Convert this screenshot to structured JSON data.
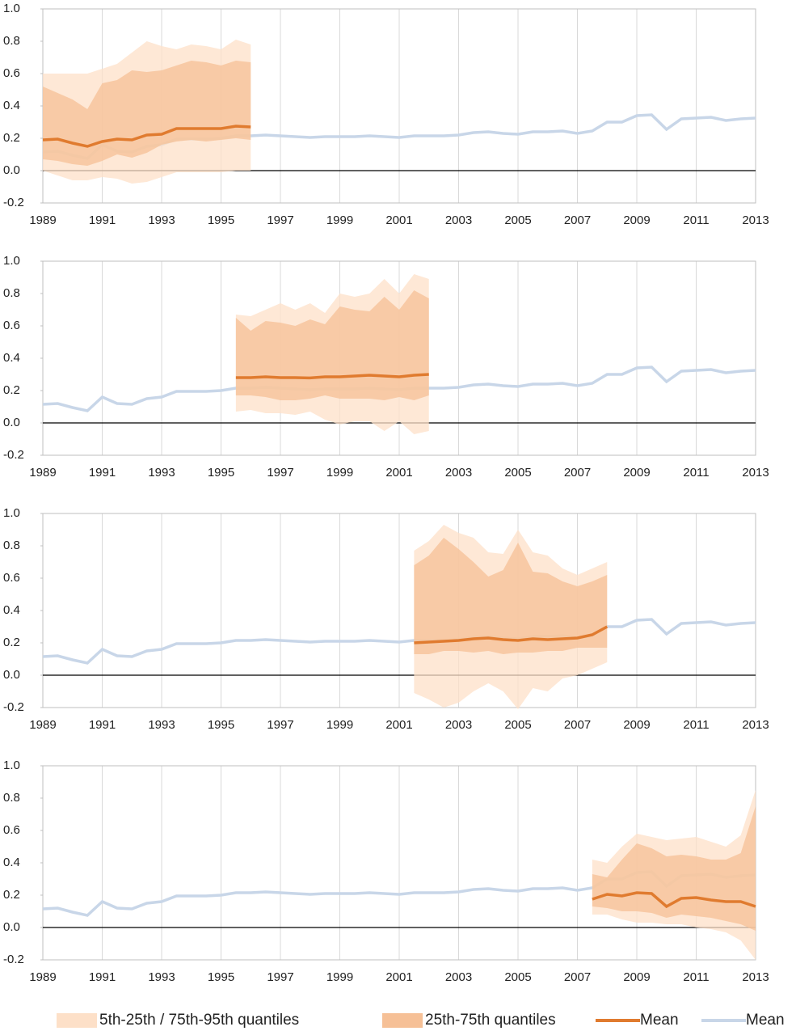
{
  "chart_data": [
    {
      "type": "line",
      "xlim": [
        1989,
        2013
      ],
      "xticks": [
        1989,
        1991,
        1993,
        1995,
        1997,
        1999,
        2001,
        2003,
        2005,
        2007,
        2009,
        2011,
        2013
      ],
      "ylim": [
        -0.2,
        1
      ],
      "yticks": [
        -0.2,
        {
          "value": 0,
          "label": "0.0"
        },
        0.2,
        0.4,
        0.6,
        0.8,
        {
          "value": 1,
          "label": "1.0"
        }
      ],
      "x": [
        1989,
        1989.5,
        1990,
        1990.5,
        1991,
        1991.5,
        1992,
        1992.5,
        1993,
        1993.5,
        1994,
        1994.5,
        1995,
        1995.5,
        1996
      ],
      "mean": [
        0.19,
        0.195,
        0.17,
        0.15,
        0.18,
        0.195,
        0.19,
        0.22,
        0.225,
        0.26,
        0.26,
        0.26,
        0.26,
        0.275,
        0.27
      ],
      "p95": [
        0.6,
        0.6,
        0.6,
        0.6,
        0.63,
        0.66,
        0.73,
        0.8,
        0.77,
        0.75,
        0.78,
        0.77,
        0.75,
        0.81,
        0.78
      ],
      "p75": [
        0.52,
        0.48,
        0.44,
        0.38,
        0.54,
        0.56,
        0.62,
        0.61,
        0.62,
        0.65,
        0.68,
        0.67,
        0.65,
        0.68,
        0.67
      ],
      "p25": [
        0.07,
        0.06,
        0.04,
        0.03,
        0.06,
        0.1,
        0.08,
        0.11,
        0.16,
        0.18,
        0.19,
        0.18,
        0.19,
        0.2,
        0.19
      ],
      "p5": [
        0,
        -0.03,
        -0.06,
        -0.06,
        -0.04,
        -0.05,
        -0.08,
        -0.07,
        -0.04,
        -0.01,
        -0.01,
        -0.01,
        -0.01,
        0,
        0
      ]
    },
    {
      "type": "line",
      "xlim": [
        1989,
        2013
      ],
      "xticks": [
        1989,
        1991,
        1993,
        1995,
        1997,
        1999,
        2001,
        2003,
        2005,
        2007,
        2009,
        2011,
        2013
      ],
      "ylim": [
        -0.2,
        1
      ],
      "yticks": [
        -0.2,
        {
          "value": 0,
          "label": "0.0"
        },
        0.2,
        0.4,
        0.6,
        0.8,
        {
          "value": 1,
          "label": "1.0"
        }
      ],
      "x": [
        1995.5,
        1996,
        1996.5,
        1997,
        1997.5,
        1998,
        1998.5,
        1999,
        1999.5,
        2000,
        2000.5,
        2001,
        2001.5,
        2002
      ],
      "mean": [
        0.28,
        0.28,
        0.285,
        0.28,
        0.28,
        0.278,
        0.285,
        0.285,
        0.29,
        0.295,
        0.29,
        0.285,
        0.295,
        0.3
      ],
      "p95": [
        0.67,
        0.66,
        0.7,
        0.74,
        0.7,
        0.74,
        0.68,
        0.8,
        0.78,
        0.8,
        0.89,
        0.8,
        0.92,
        0.89
      ],
      "p75": [
        0.65,
        0.57,
        0.63,
        0.62,
        0.6,
        0.64,
        0.61,
        0.72,
        0.7,
        0.69,
        0.78,
        0.7,
        0.82,
        0.77
      ],
      "p25": [
        0.17,
        0.17,
        0.16,
        0.14,
        0.14,
        0.15,
        0.17,
        0.15,
        0.15,
        0.15,
        0.14,
        0.16,
        0.14,
        0.17
      ],
      "p5": [
        0.07,
        0.08,
        0.06,
        0.06,
        0.05,
        0.07,
        0.02,
        -0.01,
        0.01,
        0.01,
        -0.05,
        0.01,
        -0.07,
        -0.05
      ]
    },
    {
      "type": "line",
      "xlim": [
        1989,
        2013
      ],
      "xticks": [
        1989,
        1991,
        1993,
        1995,
        1997,
        1999,
        2001,
        2003,
        2005,
        2007,
        2009,
        2011,
        2013
      ],
      "ylim": [
        -0.2,
        1
      ],
      "yticks": [
        -0.2,
        {
          "value": 0,
          "label": "0.0"
        },
        0.2,
        0.4,
        0.6,
        0.8,
        {
          "value": 1,
          "label": "1.0"
        }
      ],
      "x": [
        2001.5,
        2002,
        2002.5,
        2003,
        2003.5,
        2004,
        2004.5,
        2005,
        2005.5,
        2006,
        2006.5,
        2007,
        2007.5,
        2008
      ],
      "mean": [
        0.2,
        0.205,
        0.21,
        0.215,
        0.225,
        0.23,
        0.22,
        0.215,
        0.225,
        0.22,
        0.225,
        0.23,
        0.25,
        0.3
      ],
      "p95": [
        0.77,
        0.83,
        0.93,
        0.88,
        0.85,
        0.76,
        0.75,
        0.9,
        0.76,
        0.74,
        0.66,
        0.62,
        0.66,
        0.7
      ],
      "p75": [
        0.68,
        0.74,
        0.85,
        0.78,
        0.7,
        0.61,
        0.65,
        0.82,
        0.64,
        0.63,
        0.58,
        0.55,
        0.58,
        0.62
      ],
      "p25": [
        0.13,
        0.13,
        0.15,
        0.15,
        0.14,
        0.15,
        0.13,
        0.14,
        0.14,
        0.15,
        0.15,
        0.17,
        0.17,
        0.17
      ],
      "p5": [
        -0.11,
        -0.15,
        -0.2,
        -0.17,
        -0.1,
        -0.05,
        -0.1,
        -0.21,
        -0.08,
        -0.1,
        -0.02,
        0,
        0.04,
        0.08
      ]
    },
    {
      "type": "line",
      "xlim": [
        1989,
        2013
      ],
      "xticks": [
        1989,
        1991,
        1993,
        1995,
        1997,
        1999,
        2001,
        2003,
        2005,
        2007,
        2009,
        2011,
        2013
      ],
      "ylim": [
        -0.2,
        1
      ],
      "yticks": [
        -0.2,
        {
          "value": 0,
          "label": "0.0"
        },
        0.2,
        0.4,
        0.6,
        0.8,
        {
          "value": 1,
          "label": "1.0"
        }
      ],
      "x": [
        2007.5,
        2008,
        2008.5,
        2009,
        2009.5,
        2010,
        2010.5,
        2011,
        2011.5,
        2012,
        2012.5,
        2013
      ],
      "mean": [
        0.175,
        0.205,
        0.195,
        0.215,
        0.21,
        0.13,
        0.18,
        0.185,
        0.17,
        0.16,
        0.16,
        0.13
      ],
      "p95": [
        0.42,
        0.4,
        0.5,
        0.58,
        0.56,
        0.54,
        0.55,
        0.56,
        0.53,
        0.5,
        0.57,
        0.85
      ],
      "p75": [
        0.33,
        0.31,
        0.42,
        0.52,
        0.49,
        0.44,
        0.45,
        0.44,
        0.42,
        0.42,
        0.46,
        0.75
      ],
      "p25": [
        0.13,
        0.12,
        0.1,
        0.1,
        0.09,
        0.06,
        0.08,
        0.07,
        0.06,
        0.04,
        0.02,
        -0.02
      ],
      "p5": [
        0.08,
        0.08,
        0.05,
        0.03,
        0.03,
        0.02,
        0.02,
        0,
        -0.01,
        -0.03,
        -0.08,
        -0.2
      ]
    }
  ],
  "overall": {
    "x": [
      1989,
      1989.5,
      1990,
      1990.5,
      1991,
      1991.5,
      1992,
      1992.5,
      1993,
      1993.5,
      1994,
      1994.5,
      1995,
      1995.5,
      1996,
      1996.5,
      1997,
      1997.5,
      1998,
      1998.5,
      1999,
      1999.5,
      2000,
      2000.5,
      2001,
      2001.5,
      2002,
      2002.5,
      2003,
      2003.5,
      2004,
      2004.5,
      2005,
      2005.5,
      2006,
      2006.5,
      2007,
      2007.5,
      2008,
      2008.5,
      2009,
      2009.5,
      2010,
      2010.5,
      2011,
      2011.5,
      2012,
      2012.5,
      2013
    ],
    "values": [
      0.115,
      0.12,
      0.095,
      0.075,
      0.16,
      0.12,
      0.115,
      0.15,
      0.16,
      0.195,
      0.195,
      0.195,
      0.2,
      0.215,
      0.215,
      0.22,
      0.215,
      0.21,
      0.205,
      0.21,
      0.21,
      0.21,
      0.215,
      0.21,
      0.205,
      0.215,
      0.215,
      0.215,
      0.22,
      0.235,
      0.24,
      0.23,
      0.225,
      0.24,
      0.24,
      0.245,
      0.23,
      0.245,
      0.3,
      0.3,
      0.34,
      0.345,
      0.255,
      0.32,
      0.325,
      0.33,
      0.31,
      0.32,
      0.325
    ]
  },
  "legend": [
    {
      "name": "5th-25th / 75th-95th quantiles",
      "color": "#fde0c8"
    },
    {
      "name": "25th-75th quantiles",
      "color": "#f6c096"
    },
    {
      "name": "Mean",
      "color": "#e07b2f"
    },
    {
      "name": "Mean",
      "color": "#c8d6e8"
    }
  ]
}
